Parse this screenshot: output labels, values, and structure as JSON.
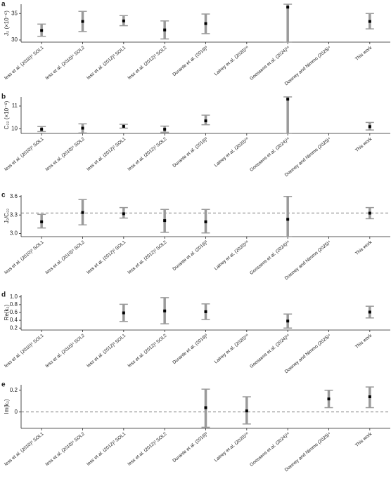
{
  "chart_data": [
    {
      "type": "errorbar",
      "panel": "a",
      "ylabel": "J₂ (×10⁻⁶)",
      "categories": [
        "Iess et al. (2010)⁵ SOL1",
        "Iess et al. (2010)⁵ SOL2",
        "Iess et al. (2012)² SOL1",
        "Iess et al. (2012)² SOL2",
        "Durante et al. (2019)³",
        "Lainey et al. (2020)¹⁸",
        "Goossens et al. (2024)¹⁶",
        "Downey and Nimmo (2025)⁴",
        "This work"
      ],
      "values": [
        31.8,
        33.5,
        33.6,
        31.9,
        33.1,
        null,
        36.2,
        null,
        33.5
      ],
      "lower": [
        30.7,
        31.6,
        32.7,
        30.2,
        31.2,
        null,
        29.6,
        null,
        32.1
      ],
      "upper": [
        33.0,
        35.4,
        34.6,
        33.6,
        34.9,
        null,
        36.75,
        null,
        35.0
      ],
      "ylim": [
        29.6,
        36.75
      ],
      "yticks": [
        30,
        35
      ],
      "color": "#9a9a9a"
    },
    {
      "type": "errorbar",
      "panel": "b",
      "ylabel": "C₂₂ (×10⁻⁶)",
      "categories": [
        "Iess et al. (2010)⁵ SOL1",
        "Iess et al. (2010)⁵ SOL2",
        "Iess et al. (2012)² SOL1",
        "Iess et al. (2012)² SOL2",
        "Durante et al. (2019)³",
        "Lainey et al. (2020)¹⁸",
        "Goossens et al. (2024)¹⁶",
        "Downey and Nimmo (2025)⁴",
        "This work"
      ],
      "values": [
        9.98,
        10.03,
        10.11,
        9.98,
        10.35,
        null,
        11.3,
        null,
        10.1
      ],
      "lower": [
        9.88,
        9.82,
        10.03,
        9.85,
        10.18,
        null,
        9.8,
        null,
        9.95
      ],
      "upper": [
        10.1,
        10.22,
        10.2,
        10.12,
        10.6,
        null,
        11.4,
        null,
        10.28
      ],
      "ylim": [
        9.8,
        11.4
      ],
      "yticks": [
        10,
        11
      ],
      "color": "#9a9a9a"
    },
    {
      "type": "errorbar",
      "panel": "c",
      "ylabel": "J₂/C₂₂",
      "categories": [
        "Iess et al. (2010)⁵ SOL1",
        "Iess et al. (2010)⁵ SOL2",
        "Iess et al. (2012)² SOL1",
        "Iess et al. (2012)² SOL2",
        "Durante et al. (2019)³",
        "Lainey et al. (2020)¹⁸",
        "Goossens et al. (2024)¹⁶",
        "Downey and Nimmo (2025)⁴",
        "This work"
      ],
      "values": [
        3.19,
        3.34,
        3.32,
        3.21,
        3.19,
        null,
        3.23,
        null,
        3.33
      ],
      "lower": [
        3.09,
        3.14,
        3.25,
        3.02,
        3.01,
        null,
        2.95,
        null,
        3.24
      ],
      "upper": [
        3.31,
        3.55,
        3.42,
        3.39,
        3.39,
        null,
        3.6,
        null,
        3.42
      ],
      "ylim": [
        2.95,
        3.62
      ],
      "yticks": [
        {
          "value": 3,
          "label": "3.0"
        },
        3.3,
        3.6
      ],
      "reference_line": 3.333,
      "color": "#9a9a9a"
    },
    {
      "type": "errorbar",
      "panel": "d",
      "ylabel": "Re(k₂)",
      "categories": [
        "Iess et al. (2010)⁵ SOL1",
        "Iess et al. (2010)⁵ SOL2",
        "Iess et al. (2012)² SOL1",
        "Iess et al. (2012)² SOL2",
        "Durante et al. (2019)³",
        "Lainey et al. (2020)¹⁸",
        "Goossens et al. (2024)¹⁶",
        "Downey and Nimmo (2025)⁴",
        "This work"
      ],
      "values": [
        null,
        null,
        0.59,
        0.64,
        0.62,
        null,
        0.38,
        null,
        0.61
      ],
      "lower": [
        null,
        null,
        0.37,
        0.31,
        0.42,
        null,
        0.2,
        null,
        0.46
      ],
      "upper": [
        null,
        null,
        0.81,
        0.98,
        0.82,
        null,
        0.56,
        null,
        0.76
      ],
      "ylim": [
        0.15,
        1.05
      ],
      "yticks": [
        0.2,
        0.4,
        0.6,
        0.8,
        {
          "value": 1,
          "label": "1.0"
        }
      ],
      "color": "#9a9a9a"
    },
    {
      "type": "errorbar",
      "panel": "e",
      "ylabel": "Im(k₂)",
      "categories": [
        "Iess et al. (2010)⁵ SOL1",
        "Iess et al. (2010)⁵ SOL2",
        "Iess et al. (2012)² SOL1",
        "Iess et al. (2012)² SOL2",
        "Durante et al. (2019)³",
        "Lainey et al. (2020)¹⁸",
        "Goossens et al. (2024)¹⁶",
        "Downey and Nimmo (2025)⁴",
        "This work"
      ],
      "values": [
        null,
        null,
        null,
        null,
        0.04,
        0.01,
        null,
        0.12,
        0.14
      ],
      "lower": [
        null,
        null,
        null,
        null,
        -0.14,
        -0.11,
        null,
        0.04,
        0.04
      ],
      "upper": [
        null,
        null,
        null,
        null,
        0.21,
        0.14,
        null,
        0.2,
        0.23
      ],
      "ylim": [
        -0.15,
        0.25
      ],
      "yticks": [
        0,
        0.2
      ],
      "reference_line": 0,
      "color": "#9a9a9a"
    }
  ]
}
